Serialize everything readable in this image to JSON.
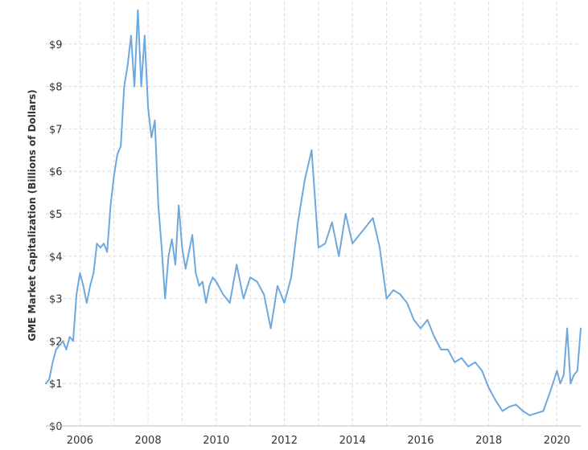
{
  "chart_data": {
    "type": "line",
    "title": "",
    "xlabel": "",
    "ylabel": "GME Market Capitalization (Billions of Dollars)",
    "xlim": [
      2005.0,
      2020.7
    ],
    "ylim": [
      0,
      10
    ],
    "xticks": [
      2006,
      2008,
      2010,
      2012,
      2014,
      2016,
      2018,
      2020
    ],
    "xtick_labels": [
      "2006",
      "2008",
      "2010",
      "2012",
      "2014",
      "2016",
      "2018",
      "2020"
    ],
    "yticks": [
      0,
      1,
      2,
      3,
      4,
      5,
      6,
      7,
      8,
      9
    ],
    "ytick_labels": [
      "$0",
      "$1",
      "$2",
      "$3",
      "$4",
      "$5",
      "$6",
      "$7",
      "$8",
      "$9"
    ],
    "grid": true,
    "legend": "none",
    "colors": {
      "line": "#6fa8dc",
      "grid": "#dddddd",
      "text": "#333333"
    },
    "series": [
      {
        "x": [
          2005.0,
          2005.1,
          2005.2,
          2005.3,
          2005.4,
          2005.5,
          2005.6,
          2005.7,
          2005.8,
          2005.9,
          2006.0,
          2006.1,
          2006.2,
          2006.3,
          2006.4,
          2006.5,
          2006.6,
          2006.7,
          2006.8,
          2006.9,
          2007.0,
          2007.1,
          2007.2,
          2007.3,
          2007.4,
          2007.5,
          2007.6,
          2007.7,
          2007.8,
          2007.9,
          2008.0,
          2008.1,
          2008.2,
          2008.3,
          2008.4,
          2008.5,
          2008.6,
          2008.7,
          2008.8,
          2008.9,
          2009.0,
          2009.1,
          2009.2,
          2009.3,
          2009.4,
          2009.5,
          2009.6,
          2009.7,
          2009.8,
          2009.9,
          2010.0,
          2010.2,
          2010.4,
          2010.6,
          2010.8,
          2011.0,
          2011.2,
          2011.4,
          2011.6,
          2011.8,
          2012.0,
          2012.2,
          2012.4,
          2012.6,
          2012.8,
          2013.0,
          2013.2,
          2013.4,
          2013.6,
          2013.8,
          2014.0,
          2014.2,
          2014.4,
          2014.6,
          2014.8,
          2015.0,
          2015.2,
          2015.4,
          2015.6,
          2015.8,
          2016.0,
          2016.2,
          2016.4,
          2016.6,
          2016.8,
          2017.0,
          2017.2,
          2017.4,
          2017.6,
          2017.8,
          2018.0,
          2018.2,
          2018.4,
          2018.6,
          2018.8,
          2019.0,
          2019.2,
          2019.4,
          2019.6,
          2019.8,
          2020.0,
          2020.1,
          2020.2,
          2020.3,
          2020.4,
          2020.5,
          2020.6,
          2020.7
        ],
        "y": [
          1.0,
          1.1,
          1.5,
          1.8,
          1.9,
          2.0,
          1.8,
          2.1,
          2.0,
          3.1,
          3.6,
          3.3,
          2.9,
          3.3,
          3.6,
          4.3,
          4.2,
          4.3,
          4.1,
          5.2,
          5.9,
          6.4,
          6.6,
          8.0,
          8.5,
          9.2,
          8.0,
          9.8,
          8.0,
          9.2,
          7.5,
          6.8,
          7.2,
          5.2,
          4.2,
          3.0,
          4.0,
          4.4,
          3.8,
          5.2,
          4.2,
          3.7,
          4.1,
          4.5,
          3.6,
          3.3,
          3.4,
          2.9,
          3.3,
          3.5,
          3.4,
          3.1,
          2.9,
          3.8,
          3.0,
          3.5,
          3.4,
          3.1,
          2.3,
          3.3,
          2.9,
          3.5,
          4.8,
          5.8,
          6.5,
          4.2,
          4.3,
          4.8,
          4.0,
          5.0,
          4.3,
          4.5,
          4.7,
          4.9,
          4.2,
          3.0,
          3.2,
          3.1,
          2.9,
          2.5,
          2.3,
          2.5,
          2.1,
          1.8,
          1.8,
          1.5,
          1.6,
          1.4,
          1.5,
          1.3,
          0.9,
          0.6,
          0.35,
          0.45,
          0.5,
          0.35,
          0.25,
          0.3,
          0.35,
          0.8,
          1.3,
          1.0,
          1.2,
          2.3,
          1.0,
          1.2,
          1.3,
          2.3
        ]
      }
    ]
  }
}
